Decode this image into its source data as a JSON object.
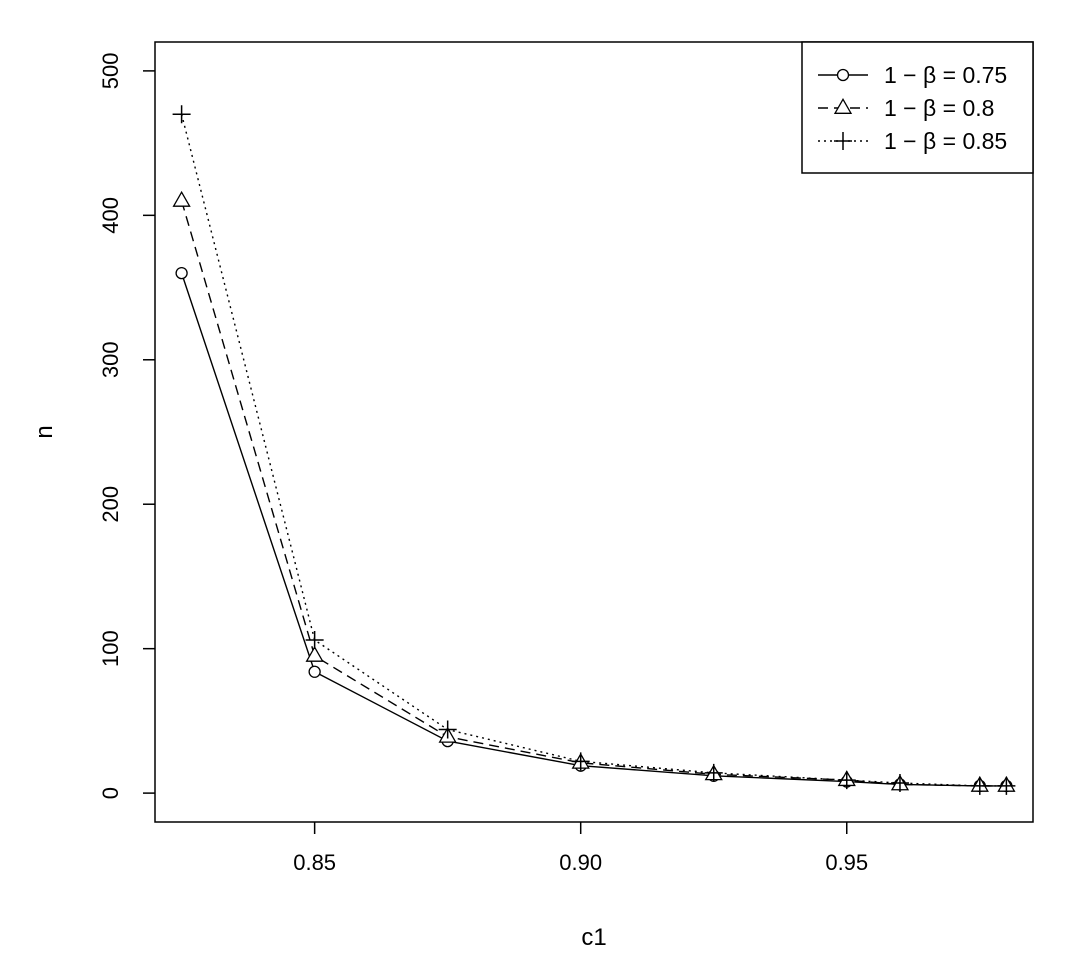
{
  "chart_data": {
    "type": "line",
    "xlabel": "c1",
    "ylabel": "n",
    "xlim": [
      0.82,
      0.985
    ],
    "ylim": [
      -20,
      520
    ],
    "x_ticks": [
      0.85,
      0.9,
      0.95
    ],
    "x_tick_labels": [
      "0.85",
      "0.90",
      "0.95"
    ],
    "y_ticks": [
      0,
      100,
      200,
      300,
      400,
      500
    ],
    "y_tick_labels": [
      "0",
      "100",
      "200",
      "300",
      "400",
      "500"
    ],
    "grid": false,
    "legend_position": "top-right",
    "x": [
      0.825,
      0.85,
      0.875,
      0.9,
      0.925,
      0.95,
      0.96,
      0.975,
      0.98
    ],
    "series": [
      {
        "name": "1 − β = 0.75",
        "marker": "circle",
        "line_style": "solid",
        "values": [
          360,
          84,
          36,
          19,
          12,
          8,
          6,
          5,
          5
        ]
      },
      {
        "name": "1 − β = 0.8",
        "marker": "triangle",
        "line_style": "dashed",
        "values": [
          410,
          95,
          39,
          21,
          13,
          9,
          6,
          5,
          5
        ]
      },
      {
        "name": "1 − β = 0.85",
        "marker": "plus",
        "line_style": "dotted",
        "values": [
          470,
          106,
          44,
          22,
          14,
          9,
          7,
          5,
          5
        ]
      }
    ]
  }
}
